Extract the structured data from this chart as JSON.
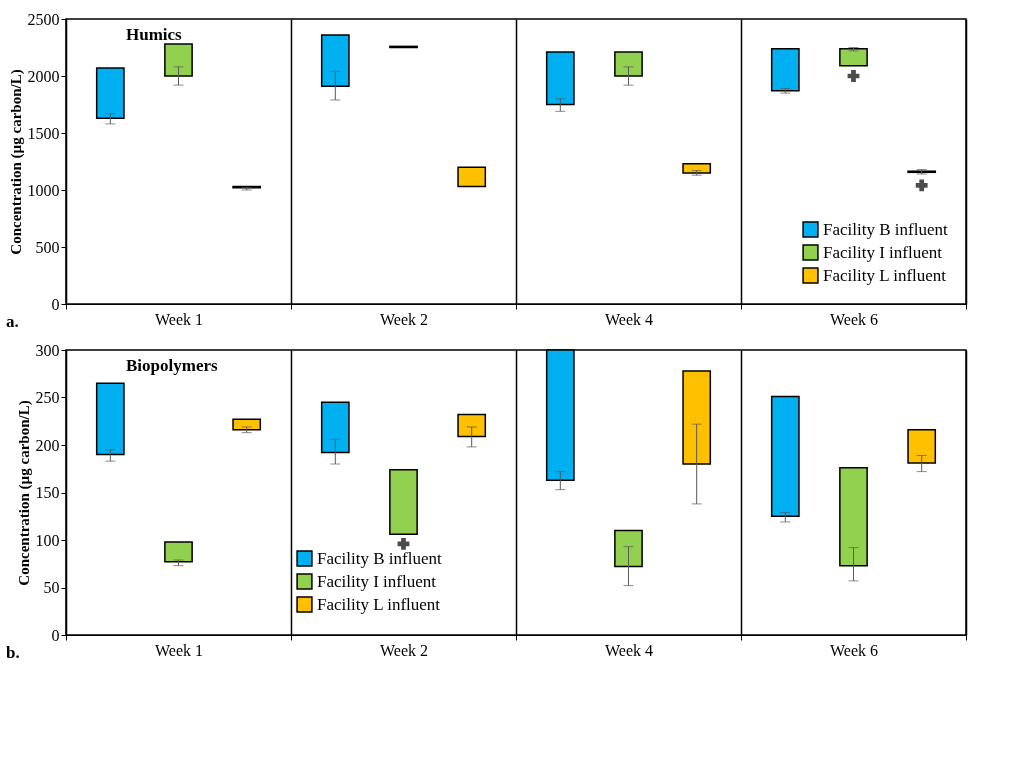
{
  "chart_data": [
    {
      "type": "bar",
      "title": "Humics",
      "ylabel": "Concentration (µg carbon/L)",
      "categories": [
        "Week 1",
        "Week 2",
        "Week 4",
        "Week 6"
      ],
      "ylim": [
        0,
        2500
      ],
      "yticks": [
        0,
        500,
        {
          "value": 1000,
          "label": "1000"
        },
        {
          "value": 1500,
          "label": "1500"
        },
        {
          "value": 2000,
          "label": "2000"
        },
        {
          "value": 2500,
          "label": "2500"
        }
      ],
      "grid": "x",
      "legend": "bottom right",
      "annotations": [
        "a."
      ],
      "series": [
        {
          "name": "Facility B influent",
          "color": "#00b0f0",
          "base": [
            1630,
            1910,
            1750,
            1870
          ],
          "values": [
            440,
            450,
            460,
            370
          ],
          "errors": [
            [
              1580,
              1670
            ],
            [
              1790,
              2040
            ],
            [
              1690,
              1800
            ],
            [
              1850,
              1890
            ]
          ]
        },
        {
          "name": "Facility I influent",
          "color": "#92d050",
          "base": [
            2000,
            2250,
            2000,
            2090
          ],
          "values": [
            280,
            10,
            210,
            150
          ],
          "errors": [
            [
              1920,
              2080
            ],
            null,
            [
              1920,
              2080
            ],
            [
              2220,
              2250
            ]
          ]
        },
        {
          "type": "scatter",
          "color": "#000000",
          "marker": "cross",
          "values": [
            null,
            null,
            null,
            2000
          ]
        },
        {
          "name": "Facility L influent",
          "color": "#ffc000",
          "base": [
            1020,
            1030,
            1150,
            1155
          ],
          "values": [
            10,
            170,
            80,
            10
          ],
          "errors": [
            [
              1000,
              1020
            ],
            null,
            [
              1130,
              1170
            ],
            [
              1140,
              1180
            ]
          ]
        },
        {
          "type": "scatter",
          "color": "#000000",
          "marker": "cross",
          "values": [
            null,
            null,
            null,
            1040
          ]
        }
      ]
    },
    {
      "type": "bar",
      "title": "Biopolymers",
      "ylabel": "Concentration (µg carbon/L)",
      "categories": [
        "Week 1",
        "Week 2",
        "Week 4",
        "Week 6"
      ],
      "ylim": [
        0,
        300
      ],
      "yticks": [
        0,
        50,
        100,
        150,
        200,
        250,
        300
      ],
      "grid": "x",
      "legend": "bottom left",
      "annotations": [
        "b."
      ],
      "series": [
        {
          "name": "Facility B influent",
          "color": "#00b0f0",
          "base": [
            190,
            192,
            163,
            125
          ],
          "values": [
            75,
            53,
            137,
            126
          ],
          "errors": [
            [
              183,
              195
            ],
            [
              180,
              206
            ],
            [
              153,
              172
            ],
            [
              119,
              129
            ]
          ]
        },
        {
          "name": "Facility I influent",
          "color": "#92d050",
          "base": [
            77,
            106,
            72,
            73
          ],
          "values": [
            21,
            68,
            38,
            103
          ],
          "errors": [
            [
              73,
              79
            ],
            null,
            [
              52,
              93
            ],
            [
              57,
              92
            ]
          ]
        },
        {
          "type": "scatter",
          "color": "#000000",
          "marker": "cross",
          "values": [
            null,
            96,
            null,
            null
          ]
        },
        {
          "name": "Facility L influent",
          "color": "#ffc000",
          "base": [
            216,
            209,
            180,
            181
          ],
          "values": [
            11,
            23,
            98,
            35
          ],
          "errors": [
            [
              213,
              219
            ],
            [
              198,
              219
            ],
            [
              138,
              222
            ],
            [
              172,
              189
            ]
          ]
        }
      ]
    }
  ]
}
